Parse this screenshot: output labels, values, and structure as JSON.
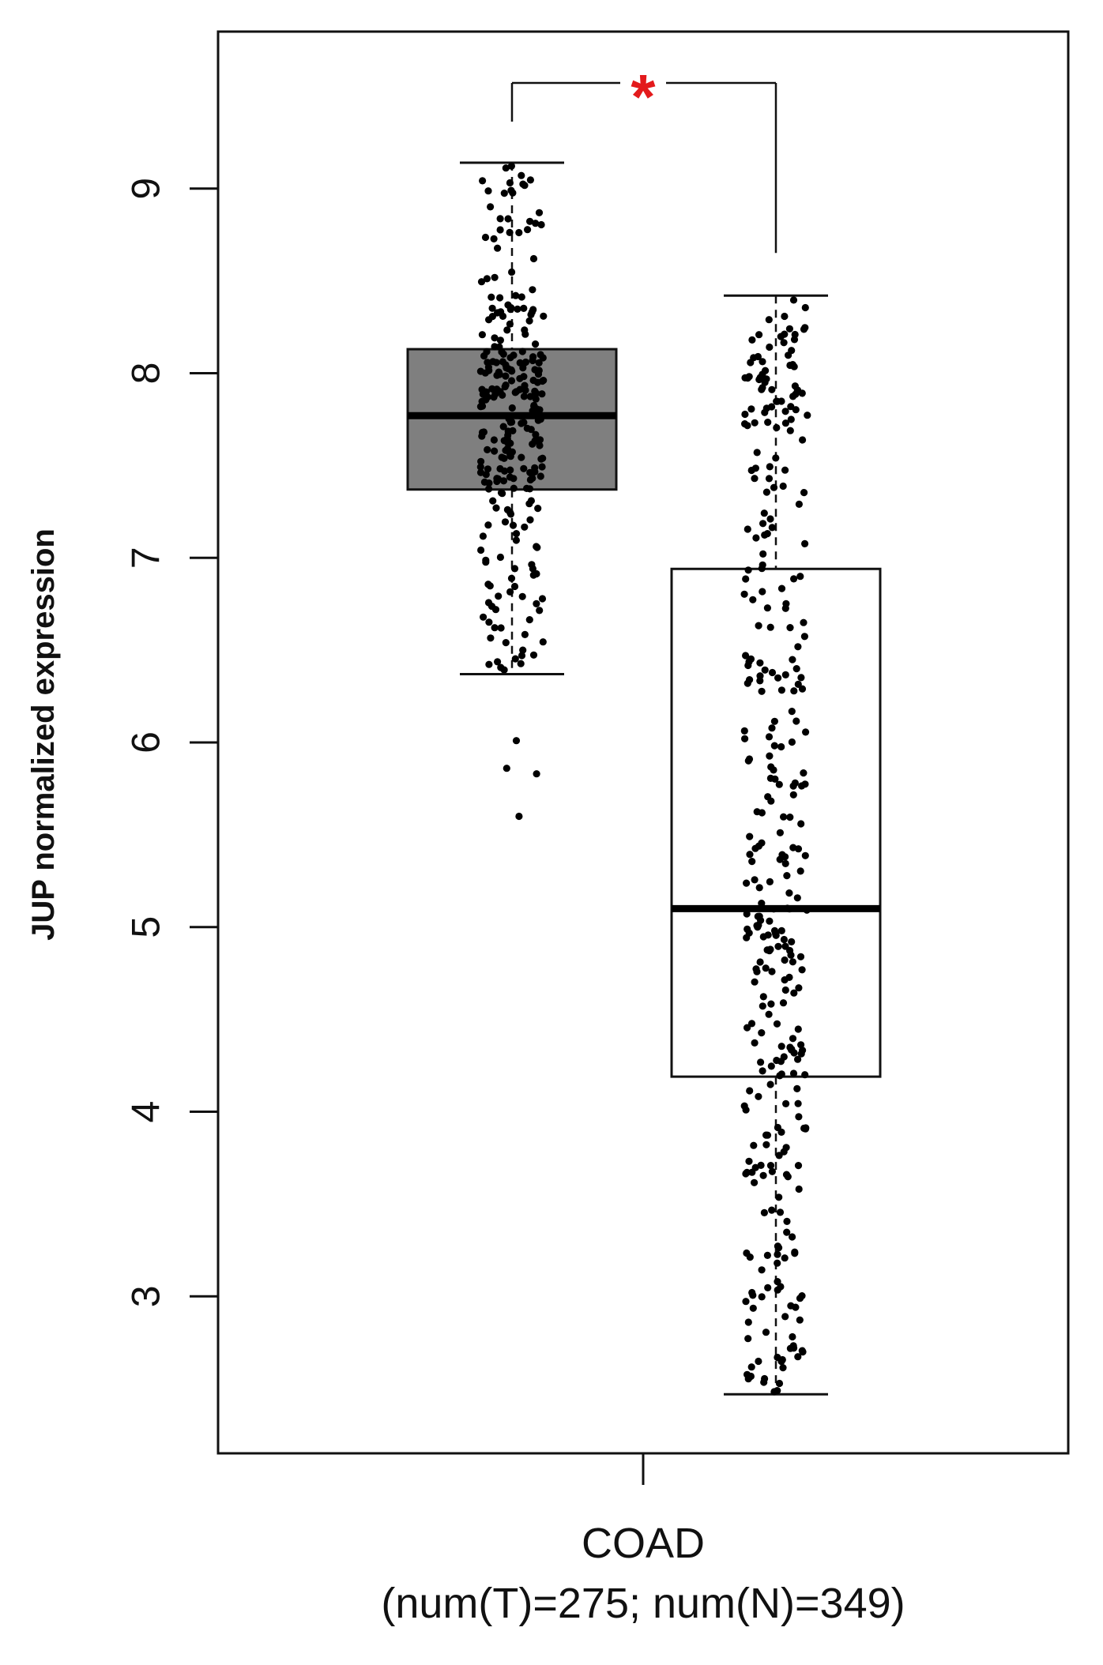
{
  "chart_data": {
    "type": "boxplot",
    "ylabel": "JUP normalized expression",
    "category": "COAD",
    "category_subtitle": "(num(T)=275; num(N)=349)",
    "ylim": [
      2.15,
      9.85
    ],
    "yticks": [
      3,
      4,
      5,
      6,
      7,
      8,
      9
    ],
    "grid": false,
    "legend": "none",
    "significance_marker": "*",
    "significance_color": "#e31a1c",
    "series": [
      {
        "group": "T",
        "count": 275,
        "fill": "#7f7f7f",
        "whisker_low": 6.37,
        "q1": 7.37,
        "median": 7.77,
        "q3": 8.13,
        "whisker_high": 9.14,
        "outliers": [
          6.01,
          5.86,
          5.83,
          5.6
        ],
        "point_range": [
          6.37,
          9.14
        ]
      },
      {
        "group": "N",
        "count": 349,
        "fill": "#ffffff",
        "whisker_low": 2.47,
        "q1": 4.19,
        "median": 5.1,
        "q3": 6.94,
        "whisker_high": 8.42,
        "outliers": [],
        "point_range": [
          2.47,
          8.42
        ]
      }
    ]
  }
}
